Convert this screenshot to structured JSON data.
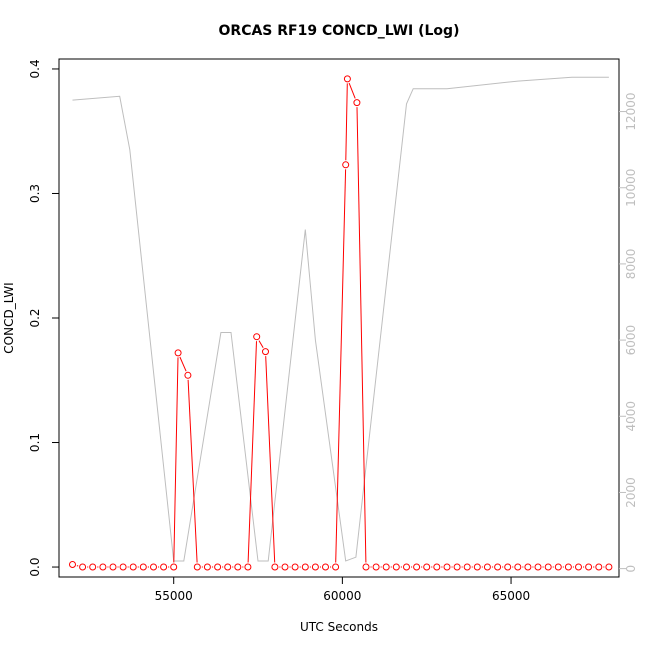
{
  "chart_data": {
    "type": "line",
    "title": "ORCAS RF19 CONCD_LWI (Log)",
    "xlabel": "UTC Seconds",
    "ylabel": "CONCD_LWI",
    "xlim": [
      51600,
      68200
    ],
    "ylim": [
      -0.008,
      0.408
    ],
    "y2lim": [
      -220,
      13380
    ],
    "x_ticks": [
      55000,
      60000,
      65000
    ],
    "y_ticks": [
      0.0,
      0.1,
      0.2,
      0.3,
      0.4
    ],
    "y_tick_labels": [
      "0.0",
      "0.1",
      "0.2",
      "0.3",
      "0.4"
    ],
    "y2_ticks": [
      0,
      2000,
      4000,
      6000,
      8000,
      10000,
      12000
    ],
    "y2_tick_labels": [
      "0",
      "2000",
      "4000",
      "6000",
      "8000",
      "10000",
      "12000"
    ],
    "grid": false,
    "colors": {
      "primary": "#ff0000",
      "secondary": "#bebebe",
      "axis": "#000000"
    },
    "series": [
      {
        "axis": "left",
        "style": "line+points",
        "x": [
          52000,
          52300,
          52600,
          52900,
          53200,
          53500,
          53800,
          54100,
          54400,
          54700,
          55000,
          55130,
          55420,
          55700,
          56000,
          56300,
          56600,
          56900,
          57200,
          57460,
          57720,
          58000,
          58300,
          58600,
          58900,
          59200,
          59500,
          59800,
          60100,
          60150,
          60430,
          60700,
          61000,
          61300,
          61600,
          61900,
          62200,
          62500,
          62800,
          63100,
          63400,
          63700,
          64000,
          64300,
          64600,
          64900,
          65200,
          65500,
          65800,
          66100,
          66400,
          66700,
          67000,
          67300,
          67600,
          67900
        ],
        "y": [
          0.002,
          0.0,
          0.0,
          0.0,
          0.0,
          0.0,
          0.0,
          0.0,
          0.0,
          0.0,
          0.0,
          0.172,
          0.154,
          0.0,
          0.0,
          0.0,
          0.0,
          0.0,
          0.0,
          0.185,
          0.173,
          0.0,
          0.0,
          0.0,
          0.0,
          0.0,
          0.0,
          0.0,
          0.323,
          0.392,
          0.373,
          0.0,
          0.0,
          0.0,
          0.0,
          0.0,
          0.0,
          0.0,
          0.0,
          0.0,
          0.0,
          0.0,
          0.0,
          0.0,
          0.0,
          0.0,
          0.0,
          0.0,
          0.0,
          0.0,
          0.0,
          0.0,
          0.0,
          0.0,
          0.0,
          0.0
        ]
      },
      {
        "axis": "right",
        "style": "line",
        "x": [
          52000,
          53400,
          53700,
          55000,
          55300,
          56400,
          56700,
          57500,
          57800,
          58900,
          59200,
          60100,
          60400,
          61900,
          62100,
          63100,
          65200,
          66800,
          67900
        ],
        "y": [
          12300,
          12400,
          11000,
          200,
          200,
          6200,
          6200,
          200,
          200,
          8900,
          6000,
          200,
          300,
          12200,
          12600,
          12600,
          12800,
          12900,
          12900
        ]
      }
    ]
  }
}
